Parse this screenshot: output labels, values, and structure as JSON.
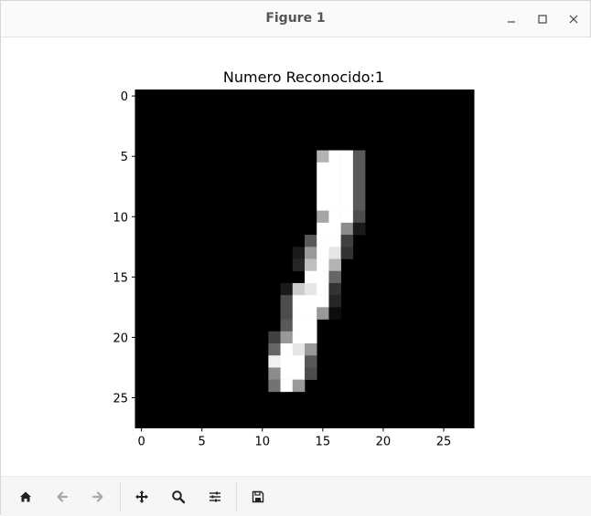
{
  "window": {
    "title": "Figure 1",
    "controls": [
      "minimize",
      "maximize",
      "close"
    ]
  },
  "toolbar": {
    "buttons": [
      {
        "name": "home",
        "icon": "home-icon",
        "enabled": true
      },
      {
        "name": "back",
        "icon": "arrow-left-icon",
        "enabled": false
      },
      {
        "name": "forward",
        "icon": "arrow-right-icon",
        "enabled": false
      },
      {
        "name": "pan",
        "icon": "move-icon",
        "enabled": true
      },
      {
        "name": "zoom",
        "icon": "magnifier-icon",
        "enabled": true
      },
      {
        "name": "configure",
        "icon": "sliders-icon",
        "enabled": true
      },
      {
        "name": "save",
        "icon": "floppy-icon",
        "enabled": true
      }
    ]
  },
  "chart_data": {
    "type": "heatmap",
    "title": "Numero Reconocido:1",
    "xlabel": "",
    "ylabel": "",
    "colormap": "gray",
    "width": 28,
    "height": 28,
    "xlim": [
      -0.5,
      27.5
    ],
    "ylim": [
      27.5,
      -0.5
    ],
    "xticks": [
      0,
      5,
      10,
      15,
      20,
      25
    ],
    "yticks": [
      0,
      5,
      10,
      15,
      20,
      25
    ],
    "grid": false,
    "pixels": [
      {
        "row": 5,
        "cells": [
          [
            15,
            0.7
          ],
          [
            16,
            1.0
          ],
          [
            17,
            1.0
          ],
          [
            18,
            0.35
          ]
        ]
      },
      {
        "row": 6,
        "cells": [
          [
            15,
            1.0
          ],
          [
            16,
            1.0
          ],
          [
            17,
            1.0
          ],
          [
            18,
            0.35
          ]
        ]
      },
      {
        "row": 7,
        "cells": [
          [
            15,
            1.0
          ],
          [
            16,
            1.0
          ],
          [
            17,
            1.0
          ],
          [
            18,
            0.35
          ]
        ]
      },
      {
        "row": 8,
        "cells": [
          [
            15,
            1.0
          ],
          [
            16,
            1.0
          ],
          [
            17,
            1.0
          ],
          [
            18,
            0.35
          ]
        ]
      },
      {
        "row": 9,
        "cells": [
          [
            15,
            1.0
          ],
          [
            16,
            1.0
          ],
          [
            17,
            1.0
          ],
          [
            18,
            0.35
          ]
        ]
      },
      {
        "row": 10,
        "cells": [
          [
            15,
            0.65
          ],
          [
            16,
            1.0
          ],
          [
            17,
            1.0
          ],
          [
            18,
            0.3
          ]
        ]
      },
      {
        "row": 11,
        "cells": [
          [
            15,
            1.0
          ],
          [
            16,
            1.0
          ],
          [
            17,
            0.55
          ],
          [
            18,
            0.1
          ]
        ]
      },
      {
        "row": 12,
        "cells": [
          [
            14,
            0.35
          ],
          [
            15,
            1.0
          ],
          [
            16,
            1.0
          ],
          [
            17,
            0.25
          ]
        ]
      },
      {
        "row": 13,
        "cells": [
          [
            13,
            0.1
          ],
          [
            14,
            0.6
          ],
          [
            15,
            1.0
          ],
          [
            16,
            0.9
          ],
          [
            17,
            0.2
          ]
        ]
      },
      {
        "row": 14,
        "cells": [
          [
            13,
            0.15
          ],
          [
            14,
            0.75
          ],
          [
            15,
            1.0
          ],
          [
            16,
            0.7
          ]
        ]
      },
      {
        "row": 15,
        "cells": [
          [
            14,
            1.0
          ],
          [
            15,
            1.0
          ],
          [
            16,
            0.4
          ]
        ]
      },
      {
        "row": 16,
        "cells": [
          [
            12,
            0.1
          ],
          [
            13,
            0.8
          ],
          [
            14,
            0.9
          ],
          [
            15,
            1.0
          ],
          [
            16,
            0.2
          ]
        ]
      },
      {
        "row": 17,
        "cells": [
          [
            12,
            0.3
          ],
          [
            13,
            1.0
          ],
          [
            14,
            1.0
          ],
          [
            15,
            1.0
          ],
          [
            16,
            0.15
          ]
        ]
      },
      {
        "row": 18,
        "cells": [
          [
            12,
            0.3
          ],
          [
            13,
            1.0
          ],
          [
            14,
            1.0
          ],
          [
            15,
            0.6
          ],
          [
            16,
            0.05
          ]
        ]
      },
      {
        "row": 19,
        "cells": [
          [
            12,
            0.35
          ],
          [
            13,
            1.0
          ],
          [
            14,
            1.0
          ]
        ]
      },
      {
        "row": 20,
        "cells": [
          [
            11,
            0.25
          ],
          [
            12,
            0.6
          ],
          [
            13,
            1.0
          ],
          [
            14,
            1.0
          ]
        ]
      },
      {
        "row": 21,
        "cells": [
          [
            11,
            0.4
          ],
          [
            12,
            1.0
          ],
          [
            13,
            0.9
          ],
          [
            14,
            0.6
          ]
        ]
      },
      {
        "row": 22,
        "cells": [
          [
            11,
            0.95
          ],
          [
            12,
            1.0
          ],
          [
            13,
            1.0
          ],
          [
            14,
            0.35
          ]
        ]
      },
      {
        "row": 23,
        "cells": [
          [
            11,
            0.55
          ],
          [
            12,
            1.0
          ],
          [
            13,
            1.0
          ],
          [
            14,
            0.3
          ]
        ]
      },
      {
        "row": 24,
        "cells": [
          [
            11,
            0.45
          ],
          [
            12,
            1.0
          ],
          [
            13,
            0.6
          ]
        ]
      }
    ]
  }
}
